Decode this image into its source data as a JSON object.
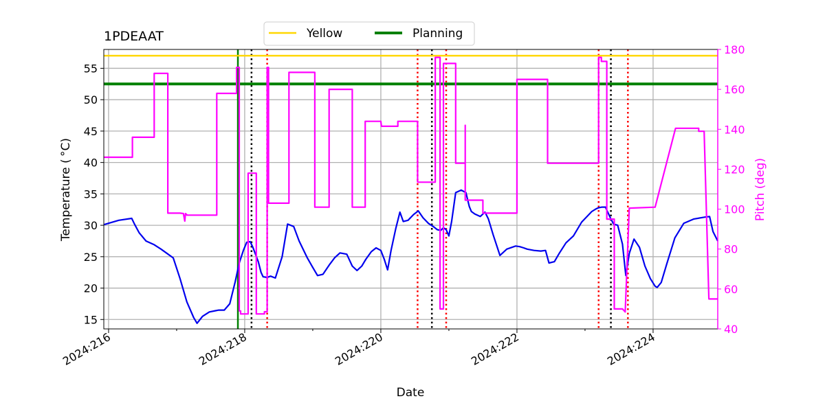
{
  "chart_data": {
    "type": "line",
    "title": "1PDEAAT",
    "xlabel": "Date",
    "ylabel_left": "Temperature ($^\\circ$C)",
    "ylabel_right": "Pitch (deg)",
    "x_ticks": [
      216,
      218,
      220,
      222,
      224
    ],
    "x_tick_labels": [
      "2024:216",
      "2024:218",
      "2024:220",
      "2024:222",
      "2024:224"
    ],
    "xlim": [
      215.93,
      224.95
    ],
    "ylim_left": [
      13.5,
      58.0
    ],
    "ylim_right": [
      40,
      180
    ],
    "y_ticks_left": [
      15,
      20,
      25,
      30,
      35,
      40,
      45,
      50,
      55
    ],
    "y_ticks_right": [
      40,
      60,
      80,
      100,
      120,
      140,
      160,
      180
    ],
    "grid": true,
    "legend_placement": "top-center",
    "legend": [
      {
        "label": "Yellow",
        "color": "#ffd700"
      },
      {
        "label": "Planning",
        "color": "#008000"
      }
    ],
    "thresholds": [
      {
        "name": "Yellow",
        "value": 57.0,
        "color": "#ffd700"
      },
      {
        "name": "Planning",
        "value": 52.5,
        "color": "#008000"
      }
    ],
    "vertical_lines": {
      "green_solid": [
        217.9
      ],
      "black_dotted": [
        218.1,
        220.75,
        223.38
      ],
      "red_dotted": [
        218.33,
        220.54,
        220.96,
        223.2,
        223.63
      ]
    },
    "colors": {
      "temperature": "#0000ee",
      "pitch": "#ff00ff",
      "grid": "#b0b0b0",
      "black": "#000000",
      "red": "#ff0000"
    },
    "series": [
      {
        "name": "Temperature",
        "axis": "left",
        "color": "#0000ee",
        "x": [
          215.93,
          216.15,
          216.34,
          216.38,
          216.45,
          216.55,
          216.67,
          216.77,
          216.86,
          216.95,
          217.05,
          217.15,
          217.25,
          217.3,
          217.38,
          217.48,
          217.57,
          217.62,
          217.7,
          217.78,
          217.86,
          217.92,
          217.98,
          218.03,
          218.08,
          218.12,
          218.2,
          218.24,
          218.27,
          218.33,
          218.38,
          218.45,
          218.55,
          218.63,
          218.72,
          218.8,
          218.92,
          219.0,
          219.07,
          219.15,
          219.2,
          219.25,
          219.32,
          219.4,
          219.5,
          219.58,
          219.65,
          219.72,
          219.78,
          219.86,
          219.93,
          220.0,
          220.05,
          220.1,
          220.15,
          220.22,
          220.28,
          220.33,
          220.4,
          220.48,
          220.55,
          220.62,
          220.7,
          220.77,
          220.83,
          220.88,
          220.92,
          220.96,
          221.0,
          221.04,
          221.1,
          221.18,
          221.25,
          221.3,
          221.33,
          221.38,
          221.46,
          221.53,
          221.58,
          221.65,
          221.75,
          221.85,
          221.98,
          222.04,
          222.1,
          222.15,
          222.25,
          222.35,
          222.42,
          222.47,
          222.55,
          222.62,
          222.72,
          222.83,
          222.95,
          223.1,
          223.16,
          223.2,
          223.25,
          223.3,
          223.38,
          223.42,
          223.48,
          223.55,
          223.6,
          223.65,
          223.72,
          223.8,
          223.88,
          223.96,
          224.03,
          224.06,
          224.12,
          224.2,
          224.32,
          224.45,
          224.6,
          224.76,
          224.83,
          224.88,
          224.95
        ],
        "y": [
          30.1,
          30.8,
          31.1,
          30.2,
          28.8,
          27.5,
          26.9,
          26.2,
          25.5,
          24.8,
          21.5,
          17.8,
          15.3,
          14.4,
          15.5,
          16.2,
          16.4,
          16.5,
          16.5,
          17.5,
          21.0,
          24.0,
          26.0,
          27.3,
          27.4,
          26.5,
          24.2,
          22.5,
          21.8,
          21.7,
          21.9,
          21.6,
          25.0,
          30.2,
          29.8,
          27.5,
          24.8,
          23.3,
          22.0,
          22.2,
          23.0,
          23.8,
          24.8,
          25.6,
          25.4,
          23.5,
          22.8,
          23.5,
          24.6,
          25.8,
          26.4,
          26.0,
          24.6,
          22.9,
          26.0,
          29.5,
          32.1,
          30.6,
          30.8,
          31.7,
          32.3,
          31.2,
          30.3,
          29.8,
          29.3,
          29.2,
          29.6,
          29.3,
          28.3,
          30.6,
          35.2,
          35.6,
          35.2,
          33.0,
          32.2,
          31.8,
          31.4,
          32.1,
          31.0,
          28.5,
          25.2,
          26.2,
          26.7,
          26.6,
          26.4,
          26.2,
          26.0,
          25.9,
          26.0,
          24.0,
          24.2,
          25.5,
          27.2,
          28.3,
          30.5,
          32.2,
          32.6,
          32.8,
          32.9,
          32.9,
          31.0,
          30.2,
          30.0,
          27.0,
          22.0,
          25.5,
          27.8,
          26.5,
          23.5,
          21.5,
          20.3,
          20.1,
          20.9,
          23.8,
          28.0,
          30.3,
          31.0,
          31.3,
          31.4,
          29.0,
          27.5
        ]
      },
      {
        "name": "Pitch",
        "axis": "right",
        "color": "#ff00ff",
        "x": [
          215.93,
          216.35,
          216.35,
          216.67,
          216.67,
          216.87,
          216.87,
          217.05,
          217.1,
          217.1,
          217.12,
          217.13,
          217.15,
          217.15,
          217.59,
          217.59,
          217.88,
          217.88,
          217.92,
          217.92,
          217.94,
          217.94,
          218.05,
          218.05,
          218.17,
          218.17,
          218.29,
          218.29,
          218.33,
          218.33,
          218.35,
          218.35,
          218.65,
          218.65,
          219.03,
          219.03,
          219.24,
          219.24,
          219.58,
          219.58,
          219.77,
          219.77,
          220.0,
          220.01,
          220.25,
          220.25,
          220.54,
          220.54,
          220.74,
          220.74,
          220.8,
          220.8,
          220.87,
          220.87,
          220.92,
          220.92,
          221.1,
          221.1,
          221.24,
          221.24,
          221.24,
          221.24,
          221.5,
          221.5,
          222.0,
          222.0,
          222.45,
          222.45,
          223.2,
          223.2,
          223.24,
          223.24,
          223.32,
          223.32,
          223.43,
          223.43,
          223.55,
          223.59,
          223.59,
          223.65,
          223.65,
          224.03,
          224.03,
          224.33,
          224.33,
          224.38,
          224.45,
          224.65,
          224.67,
          224.67,
          224.73,
          224.75,
          224.75,
          224.82,
          224.82,
          224.95
        ],
        "y": [
          126,
          126,
          136,
          136,
          168,
          168,
          98,
          98,
          97.8,
          97.8,
          94,
          97.8,
          97.2,
          97,
          97,
          158,
          158,
          171,
          171,
          49,
          49,
          47.5,
          47.5,
          118,
          118,
          47.5,
          47.5,
          48.6,
          48.6,
          171,
          171,
          103,
          103,
          168.5,
          168.5,
          101,
          101,
          160,
          160,
          101,
          101,
          144,
          144,
          141.5,
          141.5,
          144,
          144,
          113.5,
          113.5,
          113.5,
          113.5,
          176,
          176,
          50,
          50,
          173,
          173,
          123,
          123,
          142,
          142,
          104.5,
          104.5,
          98,
          98,
          165,
          165,
          123,
          123,
          176,
          176,
          174,
          174,
          95,
          95,
          50,
          50,
          48.5,
          48.5,
          100.5,
          100.5,
          101,
          101,
          140.5,
          140.5,
          140.5,
          140.5,
          140.5,
          140.5,
          139,
          139,
          139,
          139,
          55,
          55,
          55
        ]
      }
    ]
  }
}
